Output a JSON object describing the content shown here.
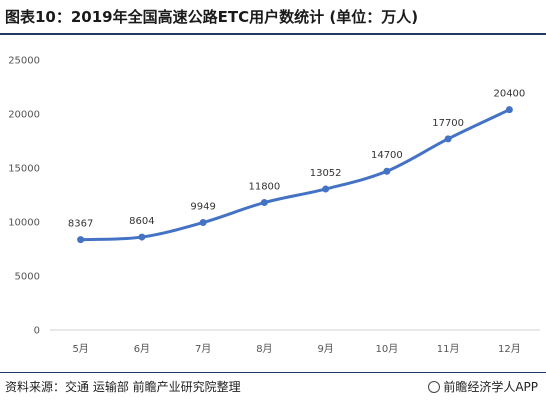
{
  "title": "图表10：2019年全国高速公路ETC用户数统计 (单位：万人)",
  "footer": {
    "source": "资料来源：交通 运输部 前瞻产业研究院整理",
    "brand": "前瞻经济学人APP"
  },
  "chart_data": {
    "type": "line",
    "categories": [
      "5月",
      "6月",
      "7月",
      "8月",
      "9月",
      "10月",
      "11月",
      "12月"
    ],
    "series": [
      {
        "values": [
          8367,
          8604,
          9949,
          11800,
          13052,
          14700,
          17700,
          20400
        ],
        "color": "#4472c4"
      }
    ],
    "data_labels": [
      "8367",
      "8604",
      "9949",
      "11800",
      "13052",
      "14700",
      "17700",
      "20400"
    ],
    "y_ticks": [
      "0",
      "5000",
      "10000",
      "15000",
      "20000",
      "25000"
    ],
    "ylim": [
      0,
      25000
    ],
    "xlabel": "",
    "ylabel": "",
    "grid": false,
    "legend": "none"
  }
}
